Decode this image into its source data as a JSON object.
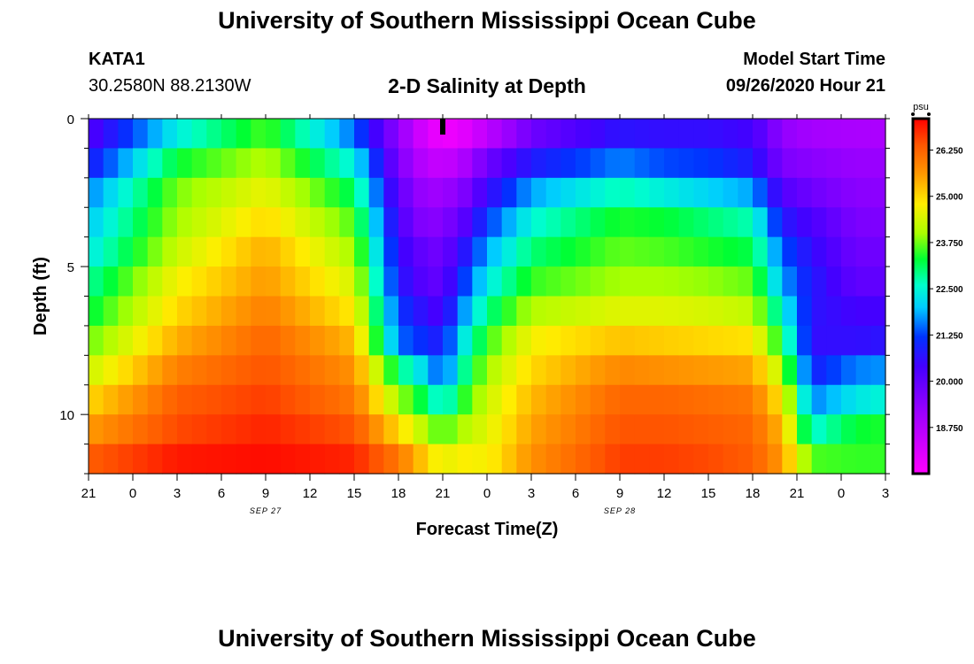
{
  "header": {
    "title": "University of Southern Mississippi Ocean Cube",
    "station": "KATA1",
    "coords": "30.2580N 88.2130W",
    "plot_title": "2-D Salinity at Depth",
    "model_start_label": "Model Start Time",
    "model_start_value": "09/26/2020 Hour 21"
  },
  "footer": {
    "title": "University of Southern Mississippi Ocean Cube"
  },
  "chart_data": {
    "type": "heatmap",
    "title": "2-D Salinity at Depth",
    "xlabel": "Forecast Time(Z)",
    "ylabel": "Depth (ft)",
    "x_tick_labels": [
      "21",
      "0",
      "3",
      "6",
      "9",
      "12",
      "15",
      "18",
      "21",
      "0",
      "3",
      "6",
      "9",
      "12",
      "15",
      "18",
      "21",
      "0",
      "3"
    ],
    "date_labels": [
      {
        "text": "SEP 27",
        "hour": 12
      },
      {
        "text": "SEP 28",
        "hour": 36
      }
    ],
    "x_range_hours": [
      0,
      54
    ],
    "y_ticks": [
      0,
      5,
      10
    ],
    "y_range_ft": [
      0,
      12
    ],
    "depth_levels_ft": [
      0.5,
      1.5,
      2.5,
      3.5,
      4.5,
      5.5,
      6.5,
      7.5,
      8.5,
      9.5,
      10.5,
      11.5
    ],
    "now_marker_hour": 24,
    "colorbar": {
      "unit": "psu",
      "min": 17.5,
      "max": 27.1,
      "ticks": [
        "26.250",
        "25.000",
        "23.750",
        "22.500",
        "21.250",
        "20.000",
        "18.750"
      ],
      "stops": [
        {
          "v": 17.5,
          "color": "#ff00ff"
        },
        {
          "v": 19.2,
          "color": "#9900ff"
        },
        {
          "v": 20.4,
          "color": "#4400ff"
        },
        {
          "v": 21.2,
          "color": "#0033ff"
        },
        {
          "v": 22.0,
          "color": "#00ccff"
        },
        {
          "v": 22.6,
          "color": "#00ffcc"
        },
        {
          "v": 23.3,
          "color": "#00ff33"
        },
        {
          "v": 24.0,
          "color": "#aaff00"
        },
        {
          "v": 24.8,
          "color": "#ffee00"
        },
        {
          "v": 25.6,
          "color": "#ff9900"
        },
        {
          "v": 26.4,
          "color": "#ff5500"
        },
        {
          "v": 27.1,
          "color": "#ff0000"
        }
      ]
    },
    "columns_hours": [
      0,
      6,
      12,
      18,
      21,
      23,
      24,
      25,
      27,
      30,
      36,
      39,
      42,
      45,
      47,
      49,
      52,
      54
    ],
    "salinity_psu": [
      [
        20.2,
        20.8,
        21.6,
        22.0,
        22.3,
        22.8,
        23.2,
        23.7,
        24.3,
        25.0,
        25.6,
        26.3
      ],
      [
        22.4,
        23.3,
        23.8,
        24.0,
        24.3,
        24.7,
        25.0,
        25.4,
        25.9,
        26.3,
        26.5,
        26.9
      ],
      [
        23.6,
        24.1,
        24.6,
        25.0,
        25.4,
        25.6,
        25.9,
        26.2,
        26.4,
        26.6,
        26.8,
        27.0
      ],
      [
        21.5,
        22.4,
        23.1,
        23.6,
        24.0,
        24.4,
        24.8,
        25.3,
        25.7,
        26.0,
        26.4,
        26.8
      ],
      [
        19.3,
        19.6,
        20.0,
        20.3,
        20.6,
        20.8,
        21.2,
        21.5,
        23.0,
        24.0,
        25.0,
        26.0
      ],
      [
        18.0,
        18.5,
        19.0,
        19.3,
        19.8,
        20.0,
        20.5,
        21.0,
        22.0,
        23.0,
        24.0,
        25.0
      ],
      [
        17.8,
        18.5,
        19.2,
        19.6,
        19.8,
        20.0,
        20.3,
        20.8,
        21.2,
        22.3,
        23.5,
        24.5
      ],
      [
        17.8,
        18.6,
        19.3,
        19.8,
        20.4,
        20.9,
        21.4,
        22.0,
        22.5,
        23.2,
        24.0,
        24.8
      ],
      [
        18.6,
        19.8,
        20.5,
        21.2,
        21.8,
        22.3,
        22.9,
        23.5,
        24.0,
        24.3,
        24.5,
        24.7
      ],
      [
        19.8,
        20.8,
        21.8,
        22.5,
        23.0,
        23.5,
        24.1,
        24.7,
        25.0,
        25.3,
        25.5,
        25.7
      ],
      [
        20.7,
        21.6,
        22.7,
        23.4,
        23.7,
        24.0,
        24.5,
        25.2,
        25.8,
        26.2,
        26.4,
        26.6
      ],
      [
        20.6,
        21.3,
        22.4,
        23.3,
        23.6,
        24.0,
        24.5,
        25.1,
        25.7,
        26.2,
        26.4,
        26.6
      ],
      [
        20.6,
        21.2,
        22.1,
        23.0,
        23.4,
        23.9,
        24.4,
        25.0,
        25.6,
        26.1,
        26.3,
        26.5
      ],
      [
        20.4,
        20.8,
        21.8,
        22.7,
        23.2,
        23.7,
        24.2,
        24.9,
        25.5,
        26.0,
        26.2,
        26.3
      ],
      [
        19.3,
        19.6,
        20.2,
        20.8,
        21.4,
        21.8,
        22.5,
        23.2,
        24.1,
        24.8,
        25.3,
        25.6
      ],
      [
        19.0,
        19.4,
        19.8,
        20.3,
        20.6,
        20.8,
        20.7,
        20.6,
        20.9,
        21.6,
        22.5,
        23.6
      ],
      [
        18.9,
        19.2,
        19.4,
        19.6,
        19.8,
        20.0,
        20.4,
        20.6,
        21.6,
        22.3,
        23.3,
        23.5
      ],
      [
        18.9,
        19.2,
        19.4,
        19.6,
        19.8,
        20.0,
        20.4,
        20.7,
        21.7,
        22.5,
        23.4,
        23.5
      ]
    ]
  }
}
